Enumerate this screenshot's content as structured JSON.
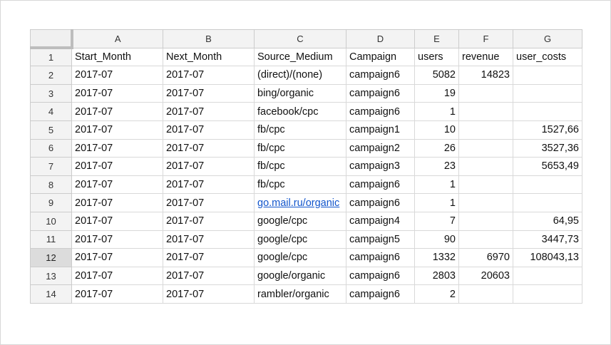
{
  "columns": [
    "A",
    "B",
    "C",
    "D",
    "E",
    "F",
    "G"
  ],
  "selected_row": "12",
  "rows": [
    {
      "num": "1",
      "cells": [
        "Start_Month",
        "Next_Month",
        "Source_Medium",
        "Campaign",
        "users",
        "revenue",
        "user_costs"
      ]
    },
    {
      "num": "2",
      "cells": [
        "2017-07",
        "2017-07",
        "(direct)/(none)",
        "campaign6",
        "5082",
        "14823",
        ""
      ]
    },
    {
      "num": "3",
      "cells": [
        "2017-07",
        "2017-07",
        "bing/organic",
        "campaign6",
        "19",
        "",
        ""
      ]
    },
    {
      "num": "4",
      "cells": [
        "2017-07",
        "2017-07",
        "facebook/cpc",
        "campaign6",
        "1",
        "",
        ""
      ]
    },
    {
      "num": "5",
      "cells": [
        "2017-07",
        "2017-07",
        "fb/cpc",
        "campaign1",
        "10",
        "",
        "1527,66"
      ]
    },
    {
      "num": "6",
      "cells": [
        "2017-07",
        "2017-07",
        "fb/cpc",
        "campaign2",
        "26",
        "",
        "3527,36"
      ]
    },
    {
      "num": "7",
      "cells": [
        "2017-07",
        "2017-07",
        "fb/cpc",
        "campaign3",
        "23",
        "",
        "5653,49"
      ]
    },
    {
      "num": "8",
      "cells": [
        "2017-07",
        "2017-07",
        "fb/cpc",
        "campaign6",
        "1",
        "",
        ""
      ]
    },
    {
      "num": "9",
      "cells": [
        "2017-07",
        "2017-07",
        "go.mail.ru/organic",
        "campaign6",
        "1",
        "",
        ""
      ]
    },
    {
      "num": "10",
      "cells": [
        "2017-07",
        "2017-07",
        "google/cpc",
        "campaign4",
        "7",
        "",
        "64,95"
      ]
    },
    {
      "num": "11",
      "cells": [
        "2017-07",
        "2017-07",
        "google/cpc",
        "campaign5",
        "90",
        "",
        "3447,73"
      ]
    },
    {
      "num": "12",
      "cells": [
        "2017-07",
        "2017-07",
        "google/cpc",
        "campaign6",
        "1332",
        "6970",
        "108043,13"
      ]
    },
    {
      "num": "13",
      "cells": [
        "2017-07",
        "2017-07",
        "google/organic",
        "campaign6",
        "2803",
        "20603",
        ""
      ]
    },
    {
      "num": "14",
      "cells": [
        "2017-07",
        "2017-07",
        "rambler/organic",
        "campaign6",
        "2",
        "",
        ""
      ]
    }
  ]
}
